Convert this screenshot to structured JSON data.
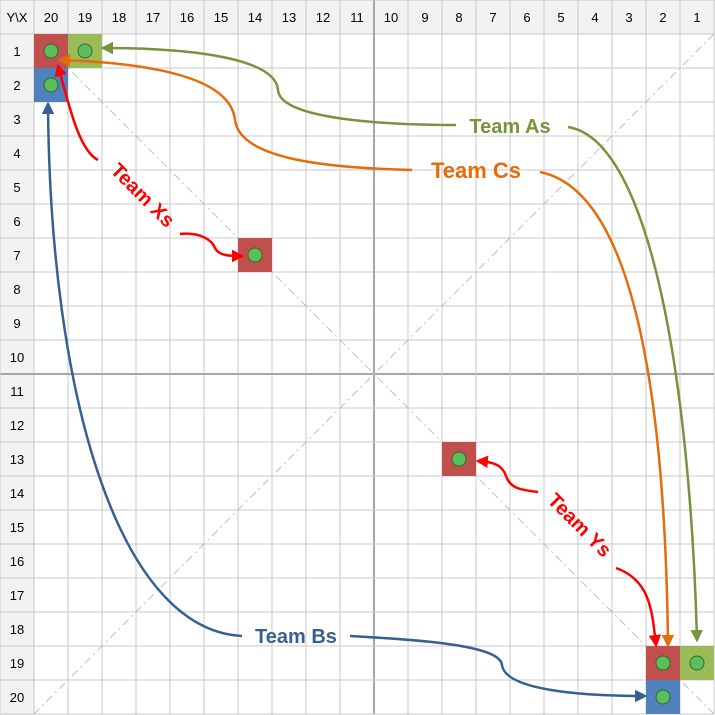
{
  "corner_label": "Y\\X",
  "x_headers": [
    "20",
    "19",
    "18",
    "17",
    "16",
    "15",
    "14",
    "13",
    "12",
    "11",
    "10",
    "9",
    "8",
    "7",
    "6",
    "5",
    "4",
    "3",
    "2",
    "1"
  ],
  "y_headers": [
    "1",
    "2",
    "3",
    "4",
    "5",
    "6",
    "7",
    "8",
    "9",
    "10",
    "11",
    "12",
    "13",
    "14",
    "15",
    "16",
    "17",
    "18",
    "19",
    "20"
  ],
  "colors": {
    "team_a": "#77933C",
    "team_b": "#376092",
    "team_c": "#E46C0A",
    "team_xy": "#FF0000",
    "cell_red": "#C0504D",
    "cell_green": "#9BBB59",
    "cell_blue": "#4F81BD",
    "dot": "#5CBF5C"
  },
  "cells": [
    {
      "x": "20",
      "y": "1",
      "color": "red"
    },
    {
      "x": "19",
      "y": "1",
      "color": "green"
    },
    {
      "x": "20",
      "y": "2",
      "color": "blue"
    },
    {
      "x": "14",
      "y": "7",
      "color": "red"
    },
    {
      "x": "8",
      "y": "13",
      "color": "red"
    },
    {
      "x": "2",
      "y": "19",
      "color": "red"
    },
    {
      "x": "1",
      "y": "19",
      "color": "green"
    },
    {
      "x": "2",
      "y": "20",
      "color": "blue"
    }
  ],
  "labels": {
    "team_a": "Team As",
    "team_b": "Team Bs",
    "team_c": "Team Cs",
    "team_x": "Team Xs",
    "team_y": "Team Ys"
  }
}
